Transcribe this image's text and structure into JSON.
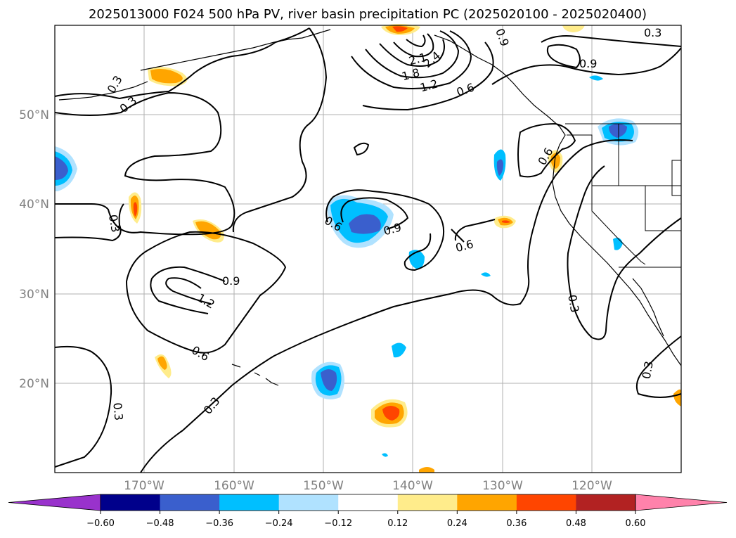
{
  "title": "2025013000 F024 500 hPa PV, river basin precipitation PC (2025020100 - 2025020400)",
  "lat_labels": [
    "50°N",
    "40°N",
    "30°N",
    "20°N"
  ],
  "lon_labels": [
    "170°W",
    "160°W",
    "150°W",
    "140°W",
    "130°W",
    "120°W"
  ],
  "colorbar": {
    "ticks": [
      "−0.60",
      "−0.48",
      "−0.36",
      "−0.24",
      "−0.12",
      "0.12",
      "0.24",
      "0.36",
      "0.48",
      "0.60"
    ],
    "colors": [
      "#9932cc",
      "#00008b",
      "#3a5fcd",
      "#00bfff",
      "#b0e2ff",
      "#ffffff",
      "#ffec8b",
      "#ffa500",
      "#ff4500",
      "#b22222",
      "#ff82ab"
    ]
  },
  "contour_labels": [
    "0.3",
    "0.3",
    "0.3",
    "0.3",
    "0.3",
    "0.3",
    "0.3",
    "0.3",
    "0.6",
    "0.6",
    "0.6",
    "0.6",
    "0.6",
    "0.9",
    "0.9",
    "0.9",
    "0.9",
    "1.2",
    "1.2",
    "1.8",
    "2.1",
    "2.4"
  ]
}
